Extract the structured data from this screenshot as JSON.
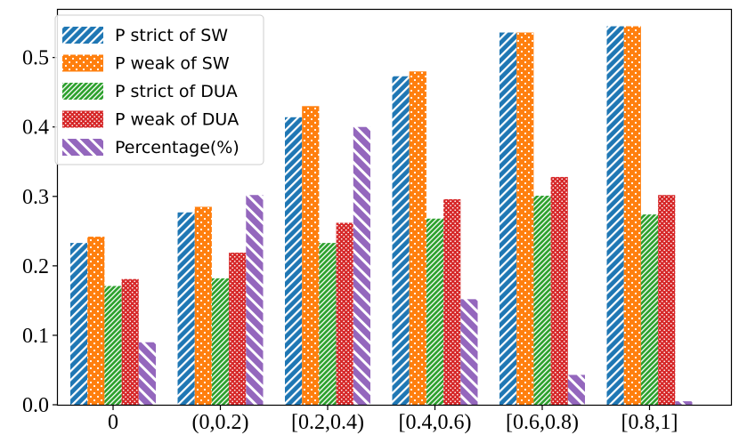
{
  "chart_data": {
    "type": "bar",
    "title": "",
    "xlabel": "",
    "ylabel": "",
    "categories": [
      "0",
      "(0,0.2)",
      "[0.2,0.4)",
      "[0.4,0.6)",
      "[0.6,0.8)",
      "[0.8,1]"
    ],
    "ylim": [
      0,
      0.57
    ],
    "yticks": [
      0.0,
      0.1,
      0.2,
      0.3,
      0.4,
      0.5
    ],
    "ytick_labels": [
      "0.0",
      "0.1",
      "0.2",
      "0.3",
      "0.4",
      "0.5"
    ],
    "legend_position": "top-left",
    "series": [
      {
        "name": "P strict of SW",
        "color": "#1f77b4",
        "pattern": "diagonal-stripes",
        "values": [
          0.233,
          0.277,
          0.414,
          0.473,
          0.536,
          0.545
        ]
      },
      {
        "name": "P weak of SW",
        "color": "#ff7f0e",
        "pattern": "dots",
        "values": [
          0.242,
          0.285,
          0.43,
          0.48,
          0.536,
          0.545
        ]
      },
      {
        "name": "P strict of DUA",
        "color": "#2ca02c",
        "pattern": "dense-diagonal-stripes",
        "values": [
          0.171,
          0.182,
          0.233,
          0.268,
          0.301,
          0.274
        ]
      },
      {
        "name": "P weak of DUA",
        "color": "#d62728",
        "pattern": "dense-dots",
        "values": [
          0.181,
          0.219,
          0.262,
          0.296,
          0.328,
          0.302
        ]
      },
      {
        "name": "Percentage(%)",
        "color": "#9467bd",
        "pattern": "backslash-stripes",
        "values": [
          0.09,
          0.302,
          0.4,
          0.152,
          0.043,
          0.005
        ]
      }
    ]
  }
}
